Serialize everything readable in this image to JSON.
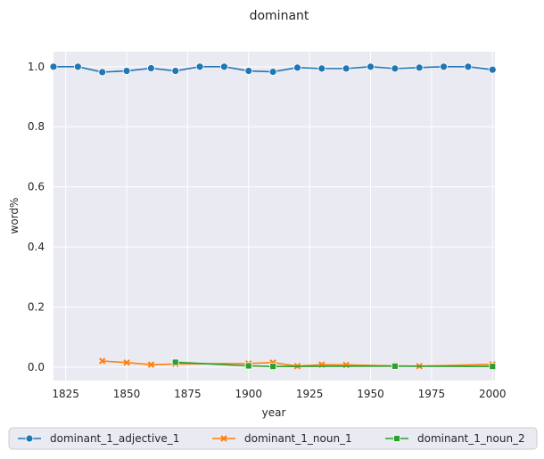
{
  "chart_data": {
    "type": "line",
    "title": "dominant",
    "xlabel": "year",
    "ylabel": "word%",
    "xlim": [
      1820,
      2001
    ],
    "ylim": [
      -0.045,
      1.05
    ],
    "xticks": [
      1825,
      1850,
      1875,
      1900,
      1925,
      1950,
      1975,
      2000
    ],
    "yticks": [
      0.0,
      0.2,
      0.4,
      0.6,
      0.8,
      1.0
    ],
    "xtick_labels": [
      "1825",
      "1850",
      "1875",
      "1900",
      "1925",
      "1950",
      "1975",
      "2000"
    ],
    "ytick_labels": [
      "0.0",
      "0.2",
      "0.4",
      "0.6",
      "0.8",
      "1.0"
    ],
    "grid": true,
    "legend_position": "bottom",
    "series": [
      {
        "name": "dominant_1_adjective_1",
        "color": "#1f77b4",
        "marker": "circle",
        "points": [
          [
            1820,
            1.0
          ],
          [
            1830,
            1.0
          ],
          [
            1840,
            0.982
          ],
          [
            1850,
            0.986
          ],
          [
            1860,
            0.995
          ],
          [
            1870,
            0.986
          ],
          [
            1880,
            1.0
          ],
          [
            1890,
            1.0
          ],
          [
            1900,
            0.986
          ],
          [
            1910,
            0.983
          ],
          [
            1920,
            0.997
          ],
          [
            1930,
            0.994
          ],
          [
            1940,
            0.994
          ],
          [
            1950,
            1.0
          ],
          [
            1960,
            0.994
          ],
          [
            1970,
            0.997
          ],
          [
            1980,
            1.0
          ],
          [
            1990,
            1.0
          ],
          [
            2000,
            0.99
          ]
        ]
      },
      {
        "name": "dominant_1_noun_1",
        "color": "#ff7f0e",
        "marker": "x",
        "points": [
          [
            1840,
            0.02
          ],
          [
            1850,
            0.015
          ],
          [
            1860,
            0.008
          ],
          [
            1870,
            0.01
          ],
          [
            1900,
            0.012
          ],
          [
            1910,
            0.015
          ],
          [
            1920,
            0.003
          ],
          [
            1930,
            0.008
          ],
          [
            1940,
            0.007
          ],
          [
            1960,
            0.004
          ],
          [
            1970,
            0.003
          ],
          [
            2000,
            0.009
          ]
        ]
      },
      {
        "name": "dominant_1_noun_2",
        "color": "#2ca02c",
        "marker": "square",
        "points": [
          [
            1870,
            0.016
          ],
          [
            1900,
            0.004
          ],
          [
            1910,
            0.002
          ],
          [
            1960,
            0.003
          ],
          [
            2000,
            0.002
          ]
        ]
      }
    ]
  }
}
